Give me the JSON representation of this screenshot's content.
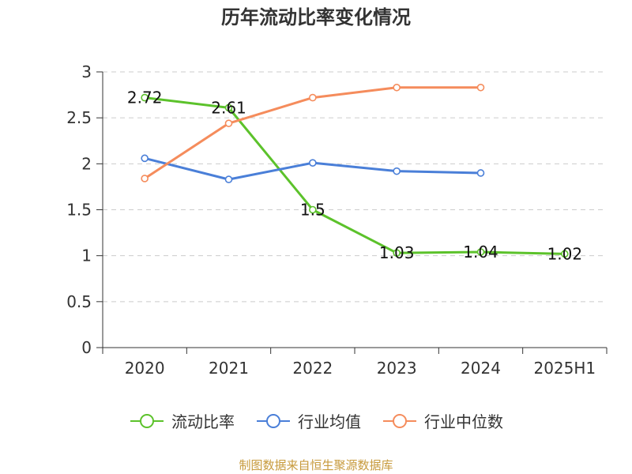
{
  "chart_data": {
    "type": "line",
    "title": "历年流动比率变化情况",
    "categories": [
      "2020",
      "2021",
      "2022",
      "2023",
      "2024",
      "2025H1"
    ],
    "ylim": [
      0,
      3
    ],
    "yticks": [
      "0",
      "0.5",
      "1",
      "1.5",
      "2",
      "2.5",
      "3"
    ],
    "grid": true,
    "legend_position": "bottom",
    "series": [
      {
        "name": "流动比率",
        "color": "#5cc22b",
        "values": [
          2.72,
          2.61,
          1.5,
          1.03,
          1.04,
          1.02
        ],
        "labels": [
          "2.72",
          "2.61",
          "1.5",
          "1.03",
          "1.04",
          "1.02"
        ]
      },
      {
        "name": "行业均值",
        "color": "#4a7fd8",
        "values": [
          2.06,
          1.83,
          2.01,
          1.92,
          1.9,
          null
        ]
      },
      {
        "name": "行业中位数",
        "color": "#f58c5c",
        "values": [
          1.84,
          2.44,
          2.72,
          2.83,
          2.83,
          null
        ]
      }
    ],
    "source": "制图数据来自恒生聚源数据库"
  }
}
